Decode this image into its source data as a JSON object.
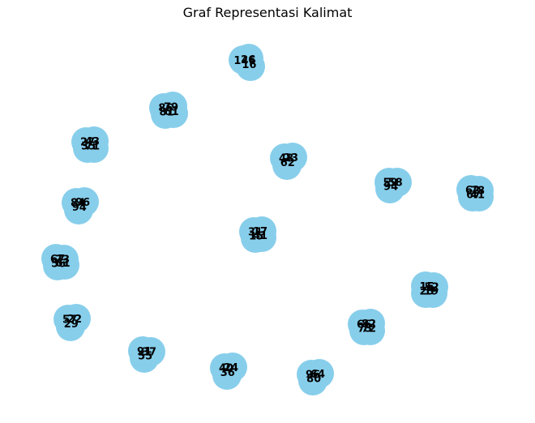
{
  "title": "Graf Representasi Kalimat",
  "colors": {
    "node_fill": "#87ceeb",
    "label": "#000000",
    "background": "#ffffff"
  },
  "clusters": [
    {
      "labels": [
        "146",
        "16",
        "26"
      ]
    },
    {
      "labels": [
        "86",
        "79",
        "81",
        "61"
      ]
    },
    {
      "labels": [
        "27",
        "43",
        "35",
        "71"
      ]
    },
    {
      "labels": [
        "48",
        "23",
        "62"
      ]
    },
    {
      "labels": [
        "59",
        "58",
        "94"
      ]
    },
    {
      "labels": [
        "62",
        "78",
        "67",
        "41"
      ]
    },
    {
      "labels": [
        "84",
        "96",
        "94"
      ]
    },
    {
      "labels": [
        "31",
        "17",
        "15",
        "41"
      ]
    },
    {
      "labels": [
        "67",
        "73",
        "56",
        "61"
      ]
    },
    {
      "labels": [
        "15",
        "52",
        "23",
        "19"
      ]
    },
    {
      "labels": [
        "57",
        "22",
        "29"
      ]
    },
    {
      "labels": [
        "66",
        "82",
        "73",
        "72"
      ]
    },
    {
      "labels": [
        "91",
        "37",
        "55"
      ]
    },
    {
      "labels": [
        "40",
        "24",
        "36"
      ]
    },
    {
      "labels": [
        "96",
        "64",
        "80"
      ]
    }
  ]
}
